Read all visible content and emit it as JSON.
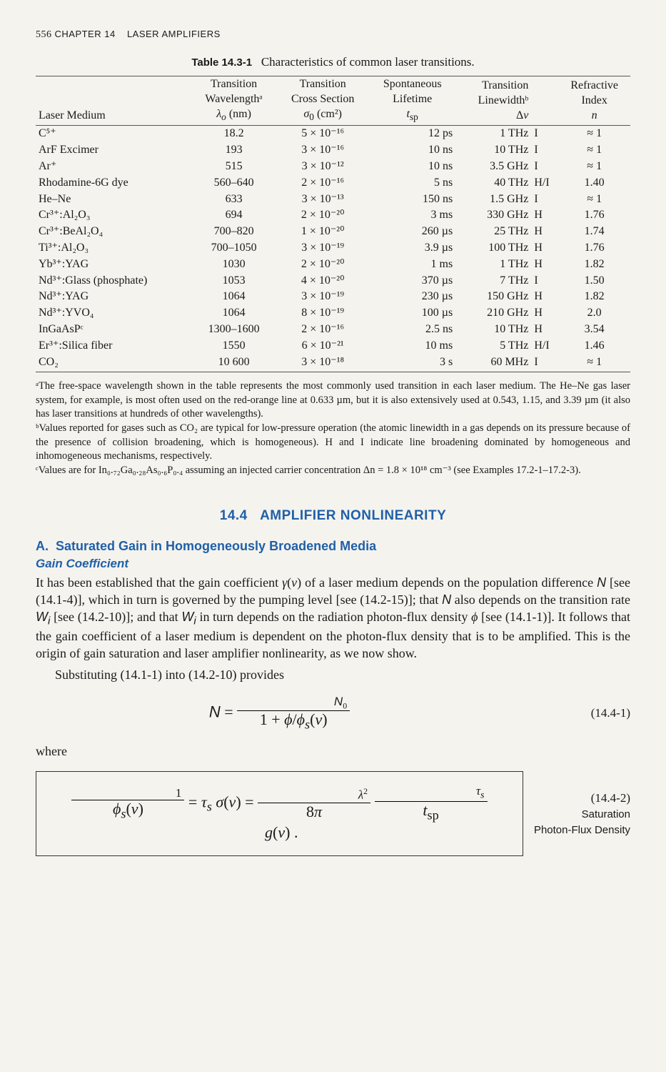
{
  "header": {
    "page_num": "556",
    "chapter": "CHAPTER 14",
    "title": "LASER AMPLIFIERS"
  },
  "table": {
    "caption_label": "Table 14.3-1",
    "caption_text": "Characteristics of common laser transitions.",
    "columns": {
      "c0": {
        "l1": "",
        "l2": "",
        "l3": "Laser Medium"
      },
      "c1": {
        "l1": "Transition",
        "l2": "Wavelengthᵃ",
        "l3": "λₒ (nm)"
      },
      "c2": {
        "l1": "Transition",
        "l2": "Cross Section",
        "l3": "σ₀ (cm²)"
      },
      "c3": {
        "l1": "Spontaneous",
        "l2": "Lifetime",
        "l3": "t_sp"
      },
      "c4": {
        "l1": "Transition",
        "l2": "Linewidthᵇ",
        "l3": "Δν"
      },
      "c5": {
        "l1": "",
        "l2": "",
        "l3": ""
      },
      "c6": {
        "l1": "Refractive",
        "l2": "Index",
        "l3": "n"
      }
    },
    "rows": [
      {
        "medium": "C⁵⁺",
        "wl": "18.2",
        "cs": "5 × 10⁻¹⁶",
        "life": "12 ps",
        "lw": "1 THz",
        "type": "I",
        "n": "≈ 1"
      },
      {
        "medium": "ArF Excimer",
        "wl": "193",
        "cs": "3 × 10⁻¹⁶",
        "life": "10 ns",
        "lw": "10 THz",
        "type": "I",
        "n": "≈ 1"
      },
      {
        "medium": "Ar⁺",
        "wl": "515",
        "cs": "3 × 10⁻¹²",
        "life": "10 ns",
        "lw": "3.5 GHz",
        "type": "I",
        "n": "≈ 1"
      },
      {
        "medium": "Rhodamine-6G dye",
        "wl": "560–640",
        "cs": "2 × 10⁻¹⁶",
        "life": "5 ns",
        "lw": "40 THz",
        "type": "H/I",
        "n": "1.40"
      },
      {
        "medium": "He–Ne",
        "wl": "633",
        "cs": "3 × 10⁻¹³",
        "life": "150 ns",
        "lw": "1.5 GHz",
        "type": "I",
        "n": "≈ 1"
      },
      {
        "medium": "Cr³⁺:Al₂O₃",
        "wl": "694",
        "cs": "2 × 10⁻²⁰",
        "life": "3 ms",
        "lw": "330 GHz",
        "type": "H",
        "n": "1.76"
      },
      {
        "medium": "Cr³⁺:BeAl₂O₄",
        "wl": "700–820",
        "cs": "1 × 10⁻²⁰",
        "life": "260 µs",
        "lw": "25 THz",
        "type": "H",
        "n": "1.74"
      },
      {
        "medium": "Ti³⁺:Al₂O₃",
        "wl": "700–1050",
        "cs": "3 × 10⁻¹⁹",
        "life": "3.9 µs",
        "lw": "100 THz",
        "type": "H",
        "n": "1.76"
      },
      {
        "medium": "Yb³⁺:YAG",
        "wl": "1030",
        "cs": "2 × 10⁻²⁰",
        "life": "1 ms",
        "lw": "1 THz",
        "type": "H",
        "n": "1.82"
      },
      {
        "medium": "Nd³⁺:Glass (phosphate)",
        "wl": "1053",
        "cs": "4 × 10⁻²⁰",
        "life": "370 µs",
        "lw": "7 THz",
        "type": "I",
        "n": "1.50"
      },
      {
        "medium": "Nd³⁺:YAG",
        "wl": "1064",
        "cs": "3 × 10⁻¹⁹",
        "life": "230 µs",
        "lw": "150 GHz",
        "type": "H",
        "n": "1.82"
      },
      {
        "medium": "Nd³⁺:YVO₄",
        "wl": "1064",
        "cs": "8 × 10⁻¹⁹",
        "life": "100 µs",
        "lw": "210 GHz",
        "type": "H",
        "n": "2.0"
      },
      {
        "medium": "InGaAsPᶜ",
        "wl": "1300–1600",
        "cs": "2 × 10⁻¹⁶",
        "life": "2.5 ns",
        "lw": "10 THz",
        "type": "H",
        "n": "3.54"
      },
      {
        "medium": "Er³⁺:Silica fiber",
        "wl": "1550",
        "cs": "6 × 10⁻²¹",
        "life": "10 ms",
        "lw": "5 THz",
        "type": "H/I",
        "n": "1.46"
      },
      {
        "medium": "CO₂",
        "wl": "10 600",
        "cs": "3 × 10⁻¹⁸",
        "life": "3 s",
        "lw": "60 MHz",
        "type": "I",
        "n": "≈ 1"
      }
    ]
  },
  "footnotes": {
    "a": "ᵃThe free-space wavelength shown in the table represents the most commonly used transition in each laser medium. The He–Ne gas laser system, for example, is most often used on the red-orange line at 0.633 µm, but it is also extensively used at 0.543, 1.15, and 3.39 µm (it also has laser transitions at hundreds of other wavelengths).",
    "b": "ᵇValues reported for gases such as CO₂ are typical for low-pressure operation (the atomic linewidth in a gas depends on its pressure because of the presence of collision broadening, which is homogeneous). H and I indicate line broadening dominated by homogeneous and inhomogeneous mechanisms, respectively.",
    "c": "ᶜValues are for In₀.₇₂Ga₀.₂₈As₀.₆P₀.₄ assuming an injected carrier concentration Δn = 1.8 × 10¹⁸ cm⁻³ (see Examples 17.2-1–17.2-3)."
  },
  "section": {
    "number": "14.4",
    "title": "AMPLIFIER NONLINEARITY"
  },
  "subsection": {
    "label": "A.",
    "title": "Saturated Gain in Homogeneously Broadened Media"
  },
  "subsub": "Gain Coefficient",
  "paragraphs": {
    "p1": "It has been established that the gain coefficient γ(ν) of a laser medium depends on the population difference N [see (14.1-4)], which in turn is governed by the pumping level [see (14.2-15)]; that N also depends on the transition rate Wᵢ [see (14.2-10)]; and that Wᵢ in turn depends on the radiation photon-flux density ϕ [see (14.1-1)]. It follows that the gain coefficient of a laser medium is dependent on the photon-flux density that is to be amplified. This is the origin of gain saturation and laser amplifier nonlinearity, as we now show.",
    "p2": "Substituting (14.1-1) into (14.2-10) provides"
  },
  "eq1": {
    "num": "(14.4-1)"
  },
  "eq2": {
    "num": "(14.4-2)",
    "caption1": "Saturation",
    "caption2": "Photon-Flux Density"
  },
  "where": "where"
}
